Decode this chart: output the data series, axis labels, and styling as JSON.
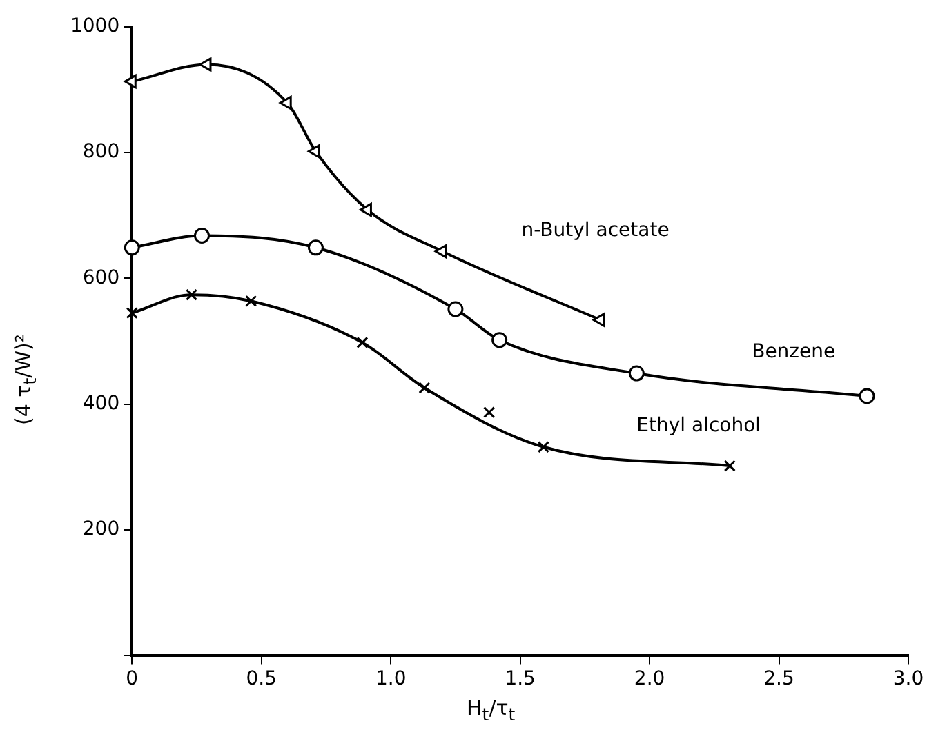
{
  "chart_data": {
    "type": "line",
    "xlabel": "H$_{t}$/τ$_{t}$",
    "ylabel": "(4 τ$_{t}$/W)²",
    "xlim": [
      0,
      3
    ],
    "xticks": [
      {
        "value": 0,
        "label": "0"
      },
      {
        "value": 0.5,
        "label": "0.5"
      },
      {
        "value": 1,
        "label": "1.0"
      },
      {
        "value": 1.5,
        "label": "1.5"
      },
      {
        "value": 2,
        "label": "2.0"
      },
      {
        "value": 2.5,
        "label": "2.5"
      },
      {
        "value": 3,
        "label": "3.0"
      }
    ],
    "ylim": [
      0,
      1000
    ],
    "yticks": [
      {
        "value": 0,
        "label": null
      },
      200,
      400,
      600,
      800,
      1000
    ],
    "grid": false,
    "legend": false,
    "series": [
      {
        "name": "n-Butyl acetate",
        "color": "#000000",
        "marker": "triangle",
        "x": [
          0,
          0.29,
          0.6,
          0.71,
          0.91,
          1.2,
          1.81
        ],
        "values": [
          913,
          940,
          879,
          802,
          709,
          643,
          534
        ]
      },
      {
        "name": "Benzene",
        "color": "#000000",
        "marker": "circle",
        "x": [
          0,
          0.27,
          0.71,
          1.25,
          1.42,
          1.95,
          2.84
        ],
        "values": [
          649,
          668,
          649,
          551,
          502,
          449,
          413
        ]
      },
      {
        "name": "Ethyl alcohol",
        "color": "#000000",
        "marker": "cross",
        "x": [
          0,
          0.23,
          0.46,
          0.89,
          1.13,
          1.59,
          2.31
        ],
        "values": [
          545,
          574,
          564,
          498,
          426,
          332,
          302
        ]
      },
      {
        "type": "scatter",
        "color": "#000000",
        "marker": "cross",
        "x": [
          1.38
        ],
        "values": [
          387
        ]
      }
    ]
  }
}
